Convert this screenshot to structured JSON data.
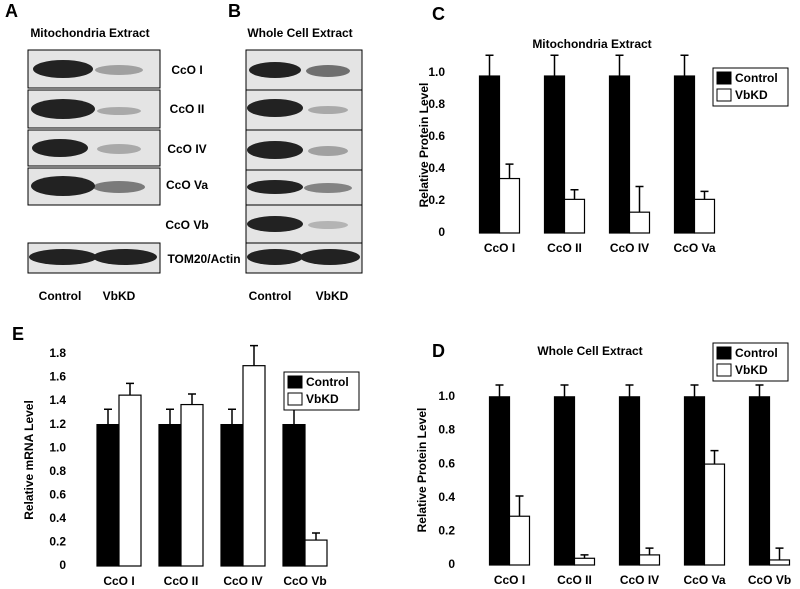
{
  "blots": [
    {
      "panel": "A",
      "title": "Mitochondria Extract",
      "lanes": [
        "Control",
        "VbKD"
      ]
    },
    {
      "panel": "B",
      "title": "Whole Cell Extract",
      "lanes": [
        "Control",
        "VbKD"
      ]
    }
  ],
  "band_labels": [
    "CcO I",
    "CcO II",
    "CcO IV",
    "CcO Va",
    "CcO Vb",
    "TOM20/Actin"
  ],
  "chart_data": [
    {
      "type": "bar",
      "panel": "C",
      "title": "Mitochondria Extract",
      "ylabel": "Relative Protein Level",
      "categories": [
        "CcO I",
        "CcO II",
        "CcO IV",
        "CcO Va"
      ],
      "series": [
        {
          "name": "Control",
          "color": "#000000",
          "values": [
            0.98,
            0.98,
            0.98,
            0.98
          ],
          "errors": [
            0.13,
            0.13,
            0.13,
            0.13
          ]
        },
        {
          "name": "VbKD",
          "color": "#ffffff",
          "values": [
            0.34,
            0.21,
            0.13,
            0.21
          ],
          "errors": [
            0.09,
            0.06,
            0.16,
            0.05
          ]
        }
      ],
      "ylim": [
        0,
        1.08
      ],
      "yticks": [
        0,
        0.2,
        0.4,
        0.6,
        0.8,
        {
          "value": 1,
          "label": "1.0"
        }
      ]
    },
    {
      "type": "bar",
      "panel": "E",
      "ylabel": "Relative mRNA Level",
      "categories": [
        "CcO I",
        "CcO II",
        "CcO IV",
        "CcO Vb"
      ],
      "series": [
        {
          "name": "Control",
          "color": "#000000",
          "values": [
            1.2,
            1.2,
            1.2,
            1.2
          ],
          "errors": [
            0.13,
            0.13,
            0.13,
            0.13
          ]
        },
        {
          "name": "VbKD",
          "color": "#ffffff",
          "values": [
            1.45,
            1.37,
            1.7,
            0.22
          ],
          "errors": [
            0.1,
            0.09,
            0.17,
            0.06
          ]
        }
      ],
      "ylim": [
        0,
        1.85
      ],
      "yticks": [
        0,
        0.2,
        0.4,
        0.6,
        0.8,
        {
          "value": 1,
          "label": "1.0"
        },
        1.2,
        1.4,
        1.6,
        1.8
      ]
    },
    {
      "type": "bar",
      "panel": "D",
      "title": "Whole Cell Extract",
      "ylabel": "Relative Protein Level",
      "categories": [
        "CcO I",
        "CcO II",
        "CcO IV",
        "CcO Va",
        "CcO Vb"
      ],
      "series": [
        {
          "name": "Control",
          "color": "#000000",
          "values": [
            1,
            1,
            1,
            1,
            1
          ],
          "errors": [
            0.07,
            0.07,
            0.07,
            0.07,
            0.07
          ]
        },
        {
          "name": "VbKD",
          "color": "#ffffff",
          "values": [
            0.29,
            0.04,
            0.06,
            0.6,
            0.03
          ],
          "errors": [
            0.12,
            0.02,
            0.04,
            0.08,
            0.07
          ]
        }
      ],
      "ylim": [
        0,
        1.1
      ],
      "yticks": [
        0,
        0.2,
        0.4,
        0.6,
        0.8,
        {
          "value": 1,
          "label": "1.0"
        }
      ]
    }
  ]
}
